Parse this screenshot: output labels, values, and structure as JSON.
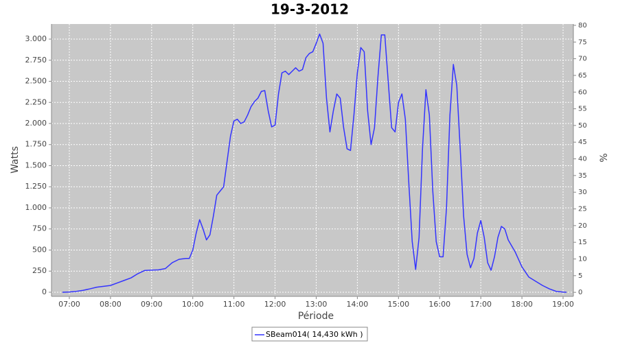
{
  "chart_data": {
    "type": "line",
    "title": "19-3-2012",
    "x_label": "Période",
    "y_label": "Watts",
    "y2_label": "%",
    "x": [
      "06:50",
      "07:00",
      "07:10",
      "07:20",
      "07:30",
      "07:40",
      "07:50",
      "08:00",
      "08:10",
      "08:20",
      "08:30",
      "08:40",
      "08:50",
      "09:00",
      "09:10",
      "09:20",
      "09:30",
      "09:40",
      "09:50",
      "09:55",
      "10:00",
      "10:05",
      "10:10",
      "10:15",
      "10:20",
      "10:25",
      "10:30",
      "10:35",
      "10:40",
      "10:45",
      "10:50",
      "10:55",
      "11:00",
      "11:05",
      "11:10",
      "11:15",
      "11:20",
      "11:25",
      "11:30",
      "11:35",
      "11:40",
      "11:45",
      "11:50",
      "11:55",
      "12:00",
      "12:05",
      "12:10",
      "12:15",
      "12:20",
      "12:25",
      "12:30",
      "12:35",
      "12:40",
      "12:45",
      "12:50",
      "12:55",
      "13:00",
      "13:05",
      "13:10",
      "13:15",
      "13:20",
      "13:25",
      "13:30",
      "13:35",
      "13:40",
      "13:45",
      "13:50",
      "13:55",
      "14:00",
      "14:05",
      "14:10",
      "14:15",
      "14:20",
      "14:25",
      "14:30",
      "14:35",
      "14:40",
      "14:45",
      "14:50",
      "14:55",
      "15:00",
      "15:05",
      "15:10",
      "15:15",
      "15:20",
      "15:25",
      "15:30",
      "15:35",
      "15:40",
      "15:45",
      "15:50",
      "15:55",
      "16:00",
      "16:05",
      "16:10",
      "16:15",
      "16:20",
      "16:25",
      "16:30",
      "16:35",
      "16:40",
      "16:45",
      "16:50",
      "16:55",
      "17:00",
      "17:05",
      "17:10",
      "17:15",
      "17:20",
      "17:25",
      "17:30",
      "17:35",
      "17:40",
      "17:50",
      "18:00",
      "18:10",
      "18:20",
      "18:30",
      "18:40",
      "18:50",
      "19:00",
      "19:05"
    ],
    "series": [
      {
        "name": "SBeam014( 14,430 kWh )",
        "color": "#3333ff",
        "values": [
          0,
          3,
          10,
          22,
          40,
          60,
          70,
          80,
          110,
          140,
          170,
          220,
          258,
          262,
          265,
          280,
          350,
          390,
          400,
          400,
          500,
          700,
          860,
          750,
          620,
          680,
          900,
          1150,
          1200,
          1250,
          1550,
          1850,
          2030,
          2050,
          2000,
          2020,
          2100,
          2200,
          2260,
          2300,
          2380,
          2390,
          2150,
          1960,
          1980,
          2350,
          2600,
          2620,
          2580,
          2620,
          2660,
          2620,
          2640,
          2780,
          2830,
          2850,
          2950,
          3060,
          2950,
          2300,
          1900,
          2150,
          2350,
          2300,
          1950,
          1700,
          1680,
          2100,
          2600,
          2900,
          2850,
          2150,
          1750,
          1950,
          2550,
          3050,
          3050,
          2500,
          1950,
          1900,
          2250,
          2350,
          2050,
          1300,
          600,
          270,
          650,
          1700,
          2400,
          2100,
          1200,
          600,
          420,
          420,
          1000,
          2100,
          2700,
          2450,
          1700,
          900,
          450,
          290,
          400,
          700,
          850,
          650,
          350,
          260,
          420,
          650,
          780,
          750,
          620,
          480,
          300,
          180,
          130,
          80,
          40,
          10,
          2,
          0
        ]
      }
    ],
    "xlim": [
      "06:34",
      "19:15"
    ],
    "xticks": [
      "07:00",
      "08:00",
      "09:00",
      "10:00",
      "11:00",
      "12:00",
      "13:00",
      "14:00",
      "15:00",
      "16:00",
      "17:00",
      "18:00",
      "19:00"
    ],
    "ylim": [
      -49,
      3179
    ],
    "yticks": [
      0,
      250,
      500,
      750,
      {
        "value": 1000,
        "label": "1.000"
      },
      {
        "value": 1250,
        "label": "1.250"
      },
      {
        "value": 1500,
        "label": "1.500"
      },
      {
        "value": 1750,
        "label": "1.750"
      },
      {
        "value": 2000,
        "label": "2.000"
      },
      {
        "value": 2250,
        "label": "2.250"
      },
      {
        "value": 2500,
        "label": "2.500"
      },
      {
        "value": 2750,
        "label": "2.750"
      },
      {
        "value": 3000,
        "label": "3.000"
      }
    ],
    "y2lim": [
      -1.2,
      80.4
    ],
    "y2ticks": [
      0,
      5,
      10,
      15,
      20,
      25,
      30,
      35,
      40,
      45,
      50,
      55,
      60,
      65,
      70,
      75,
      80
    ],
    "grid": true,
    "legend": "bottom"
  }
}
